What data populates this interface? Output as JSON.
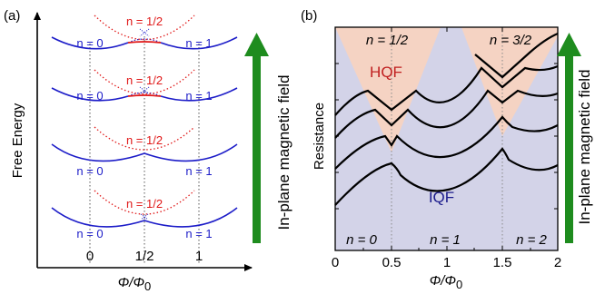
{
  "panel_a": {
    "label": "(a)",
    "y_title": "Free Energy",
    "x_title_main": "Φ/Φ",
    "x_title_sub": "0",
    "x_ticks": [
      "0",
      "1/2",
      "1"
    ],
    "curve_labels": {
      "left": "n = 0",
      "middle": "n = 1/2",
      "right": "n = 1"
    },
    "field_label": "In-plane magnetic field",
    "colors": {
      "integer": "#1c1cc8",
      "half": "#e01818",
      "arrow": "#1e8c1e"
    }
  },
  "panel_b": {
    "label": "(b)",
    "y_title": "Resistance",
    "x_title_main": "Φ/Φ",
    "x_title_sub": "0",
    "x_ticks": [
      "0",
      "0.5",
      "1",
      "1.5",
      "2"
    ],
    "regions": {
      "hqf": "HQF",
      "iqf": "IQF"
    },
    "top_labels": [
      "n = 1/2",
      "n = 3/2"
    ],
    "bottom_labels": [
      "n = 0",
      "n = 1",
      "n = 2"
    ],
    "field_label": "In-plane magnetic field",
    "colors": {
      "background": "#d3d3e8",
      "hqf": "#f5d3c3",
      "curve": "#000000",
      "arrow": "#1e8c1e"
    }
  }
}
